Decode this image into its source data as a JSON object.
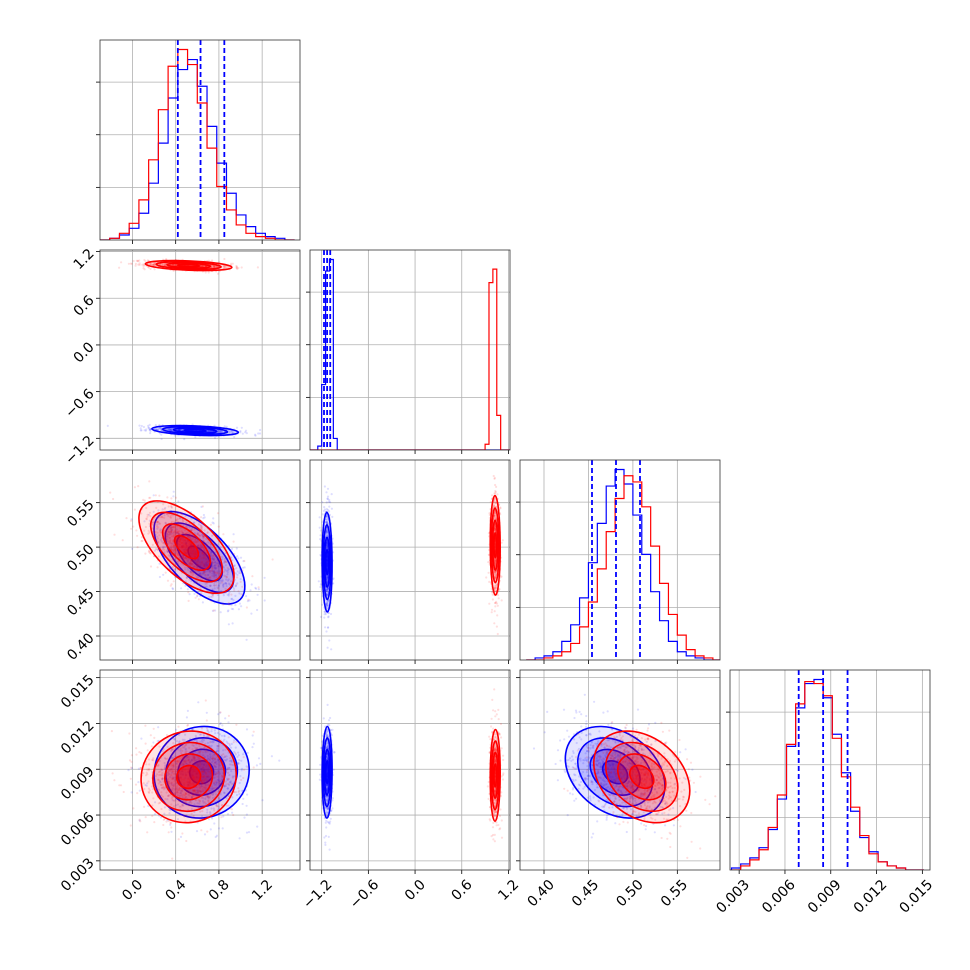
{
  "chart_data": {
    "type": "corner",
    "grid": true,
    "colors": {
      "series_a": "#0000ff",
      "series_b": "#ff0000"
    },
    "series": [
      {
        "color": "#0000ff"
      },
      {
        "color": "#ff0000"
      }
    ],
    "quantile_lines": [
      [
        0.42,
        0.63,
        0.85
      ],
      [
        -1.17,
        -1.13,
        -1.09
      ],
      [
        0.454,
        0.481,
        0.508
      ],
      [
        0.0069,
        0.0085,
        0.0101
      ]
    ],
    "params": [
      {
        "range": [
          -0.3,
          1.55
        ],
        "ticks": [
          0.0,
          0.4,
          0.8,
          1.2
        ],
        "tick_labels": [
          "0.0",
          "0.4",
          "0.8",
          "1.2"
        ]
      },
      {
        "range": [
          -1.35,
          1.22
        ],
        "ticks": [
          -1.2,
          -0.6,
          0.0,
          0.6,
          1.2
        ],
        "tick_labels": [
          "−1.2",
          "−0.6",
          "0.0",
          "0.6",
          "1.2"
        ]
      },
      {
        "range": [
          0.373,
          0.598
        ],
        "ticks": [
          0.4,
          0.45,
          0.5,
          0.55
        ],
        "tick_labels": [
          "0.40",
          "0.45",
          "0.50",
          "0.55"
        ]
      },
      {
        "range": [
          0.0024,
          0.0155
        ],
        "ticks": [
          0.003,
          0.006,
          0.009,
          0.012,
          0.015
        ],
        "tick_labels": [
          "0.003",
          "0.006",
          "0.009",
          "0.012",
          "0.015"
        ]
      }
    ],
    "histograms": [
      {
        "edges": [
          -0.3,
          -0.21,
          -0.12,
          -0.03,
          0.06,
          0.15,
          0.24,
          0.33,
          0.42,
          0.51,
          0.6,
          0.69,
          0.78,
          0.87,
          0.96,
          1.05,
          1.14,
          1.23,
          1.32,
          1.41,
          1.5
        ],
        "counts_a": [
          0,
          1,
          3,
          7,
          16,
          34,
          58,
          85,
          102,
          108,
          92,
          68,
          46,
          28,
          15,
          8,
          4,
          2,
          1,
          0
        ],
        "counts_b": [
          0,
          1,
          4,
          10,
          24,
          48,
          78,
          104,
          114,
          105,
          82,
          55,
          32,
          18,
          9,
          4,
          2,
          1,
          0,
          0
        ]
      },
      {
        "edges": [
          -1.35,
          -1.3,
          -1.25,
          -1.2,
          -1.15,
          -1.1,
          -1.05,
          -1.0,
          -0.95,
          0.8,
          0.85,
          0.9,
          0.95,
          1.0,
          1.05,
          1.1,
          1.15,
          1.22
        ],
        "counts_a": [
          0,
          0,
          2,
          34,
          93,
          99,
          6,
          0,
          0,
          0,
          0,
          0,
          0,
          0,
          0,
          0,
          0
        ],
        "counts_b": [
          0,
          0,
          0,
          0,
          0,
          0,
          0,
          0,
          0,
          0,
          0,
          3,
          87,
          94,
          18,
          0,
          0
        ]
      },
      {
        "edges": [
          0.38,
          0.39,
          0.4,
          0.41,
          0.42,
          0.43,
          0.44,
          0.45,
          0.46,
          0.47,
          0.48,
          0.49,
          0.5,
          0.51,
          0.52,
          0.53,
          0.54,
          0.55,
          0.56,
          0.57,
          0.58,
          0.59,
          0.6
        ],
        "counts_a": [
          0,
          1,
          2,
          4,
          9,
          17,
          30,
          47,
          66,
          84,
          92,
          85,
          70,
          51,
          33,
          19,
          9,
          4,
          2,
          1,
          0,
          0
        ],
        "counts_b": [
          0,
          0,
          1,
          2,
          4,
          8,
          16,
          28,
          44,
          62,
          78,
          89,
          86,
          74,
          55,
          37,
          22,
          12,
          5,
          2,
          1,
          0
        ]
      },
      {
        "edges": [
          0.0025,
          0.0031,
          0.0037,
          0.0043,
          0.0049,
          0.0055,
          0.0061,
          0.0067,
          0.0073,
          0.0079,
          0.0085,
          0.0091,
          0.0097,
          0.0103,
          0.0109,
          0.0115,
          0.0121,
          0.0127,
          0.0133,
          0.0139,
          0.0145,
          0.0151
        ],
        "counts_a": [
          1,
          3,
          6,
          11,
          20,
          35,
          61,
          80,
          92,
          94,
          85,
          67,
          48,
          29,
          16,
          9,
          4,
          2,
          1,
          0,
          0
        ],
        "counts_b": [
          0,
          2,
          5,
          10,
          21,
          37,
          62,
          82,
          93,
          92,
          86,
          65,
          46,
          31,
          17,
          8,
          4,
          2,
          1,
          0,
          0
        ]
      }
    ],
    "blobs": {
      "1-0": [
        {
          "series": 0,
          "cx": 0.58,
          "cy": -1.1,
          "sx": 0.2,
          "sy": 0.032,
          "rho": -0.35
        },
        {
          "series": 1,
          "cx": 0.52,
          "cy": 1.02,
          "sx": 0.2,
          "sy": 0.032,
          "rho": -0.35
        }
      ],
      "2-0": [
        {
          "series": 0,
          "cx": 0.62,
          "cy": 0.488,
          "sx": 0.21,
          "sy": 0.026,
          "rho": -0.62
        },
        {
          "series": 1,
          "cx": 0.5,
          "cy": 0.5,
          "sx": 0.22,
          "sy": 0.026,
          "rho": -0.62
        }
      ],
      "2-1": [
        {
          "series": 0,
          "cx": -1.13,
          "cy": 0.483,
          "sx": 0.032,
          "sy": 0.028,
          "rho": -0.05
        },
        {
          "series": 1,
          "cx": 1.03,
          "cy": 0.502,
          "sx": 0.032,
          "sy": 0.028,
          "rho": -0.05
        }
      ],
      "3-0": [
        {
          "series": 0,
          "cx": 0.64,
          "cy": 0.0088,
          "sx": 0.22,
          "sy": 0.0015,
          "rho": 0.05
        },
        {
          "series": 1,
          "cx": 0.52,
          "cy": 0.0085,
          "sx": 0.22,
          "sy": 0.0015,
          "rho": 0.05
        }
      ],
      "3-1": [
        {
          "series": 0,
          "cx": -1.13,
          "cy": 0.0088,
          "sx": 0.032,
          "sy": 0.0015,
          "rho": 0.05
        },
        {
          "series": 1,
          "cx": 1.03,
          "cy": 0.0086,
          "sx": 0.032,
          "sy": 0.0015,
          "rho": 0.05
        }
      ],
      "3-2": [
        {
          "series": 0,
          "cx": 0.48,
          "cy": 0.0088,
          "sx": 0.028,
          "sy": 0.0015,
          "rho": -0.3
        },
        {
          "series": 1,
          "cx": 0.51,
          "cy": 0.0085,
          "sx": 0.027,
          "sy": 0.0015,
          "rho": -0.3
        }
      ]
    }
  }
}
